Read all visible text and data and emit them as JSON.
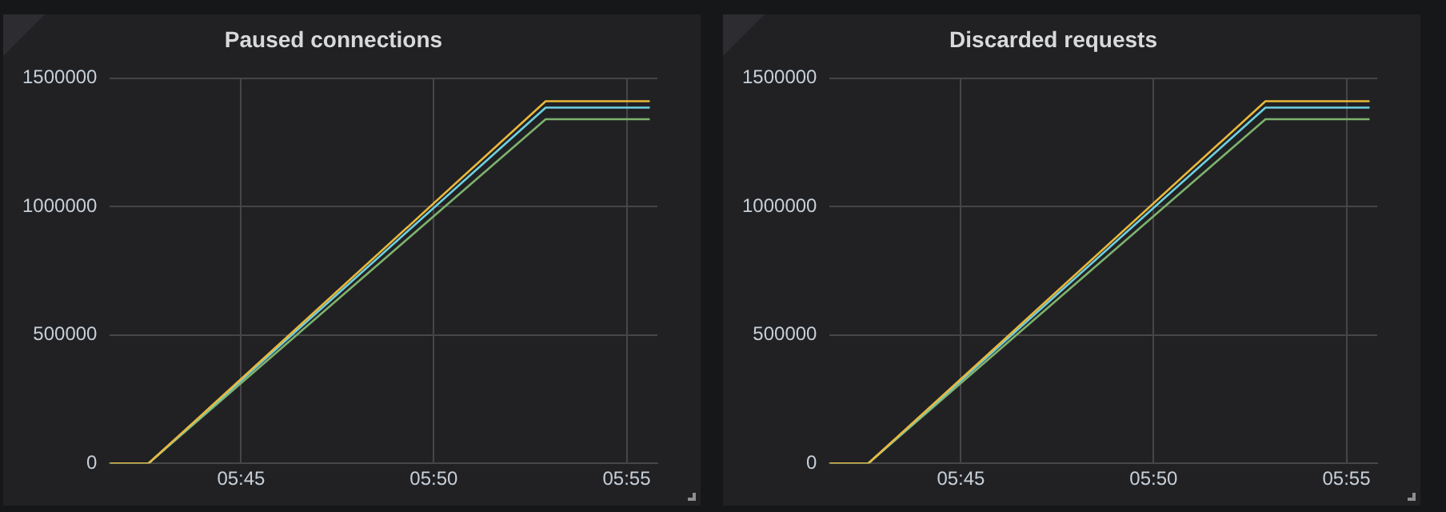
{
  "chart_data": [
    {
      "type": "line",
      "title": "Paused connections",
      "x": [
        5.6933,
        5.71,
        5.8817,
        5.9267
      ],
      "series": [
        {
          "color": "#eab839",
          "values": [
            0,
            0,
            1410000,
            1410000
          ]
        },
        {
          "color": "#6ed0e0",
          "values": [
            0,
            0,
            1385000,
            1385000
          ]
        },
        {
          "color": "#7eb26d",
          "values": [
            0,
            0,
            1340000,
            1340000
          ]
        }
      ],
      "xlim": [
        5.6933,
        5.93
      ],
      "xticks": [
        {
          "value": 5.75,
          "label": "05:45"
        },
        {
          "value": 5.8333,
          "label": "05:50"
        },
        {
          "value": 5.9167,
          "label": "05:55"
        }
      ],
      "ylim": [
        0,
        1500000
      ],
      "yticks": [
        0,
        500000,
        1000000,
        1500000
      ],
      "grid": true,
      "legend": false,
      "marker": "none",
      "line_style": "solid"
    },
    {
      "type": "line",
      "title": "Discarded requests",
      "x": [
        5.6933,
        5.71,
        5.8817,
        5.9267
      ],
      "series": [
        {
          "color": "#eab839",
          "values": [
            0,
            0,
            1410000,
            1410000
          ]
        },
        {
          "color": "#6ed0e0",
          "values": [
            0,
            0,
            1385000,
            1385000
          ]
        },
        {
          "color": "#7eb26d",
          "values": [
            0,
            0,
            1340000,
            1340000
          ]
        }
      ],
      "xlim": [
        5.6933,
        5.93
      ],
      "xticks": [
        {
          "value": 5.75,
          "label": "05:45"
        },
        {
          "value": 5.8333,
          "label": "05:50"
        },
        {
          "value": 5.9167,
          "label": "05:55"
        }
      ],
      "ylim": [
        0,
        1500000
      ],
      "yticks": [
        0,
        500000,
        1000000,
        1500000
      ],
      "grid": true,
      "legend": false,
      "marker": "none",
      "line_style": "solid"
    }
  ]
}
